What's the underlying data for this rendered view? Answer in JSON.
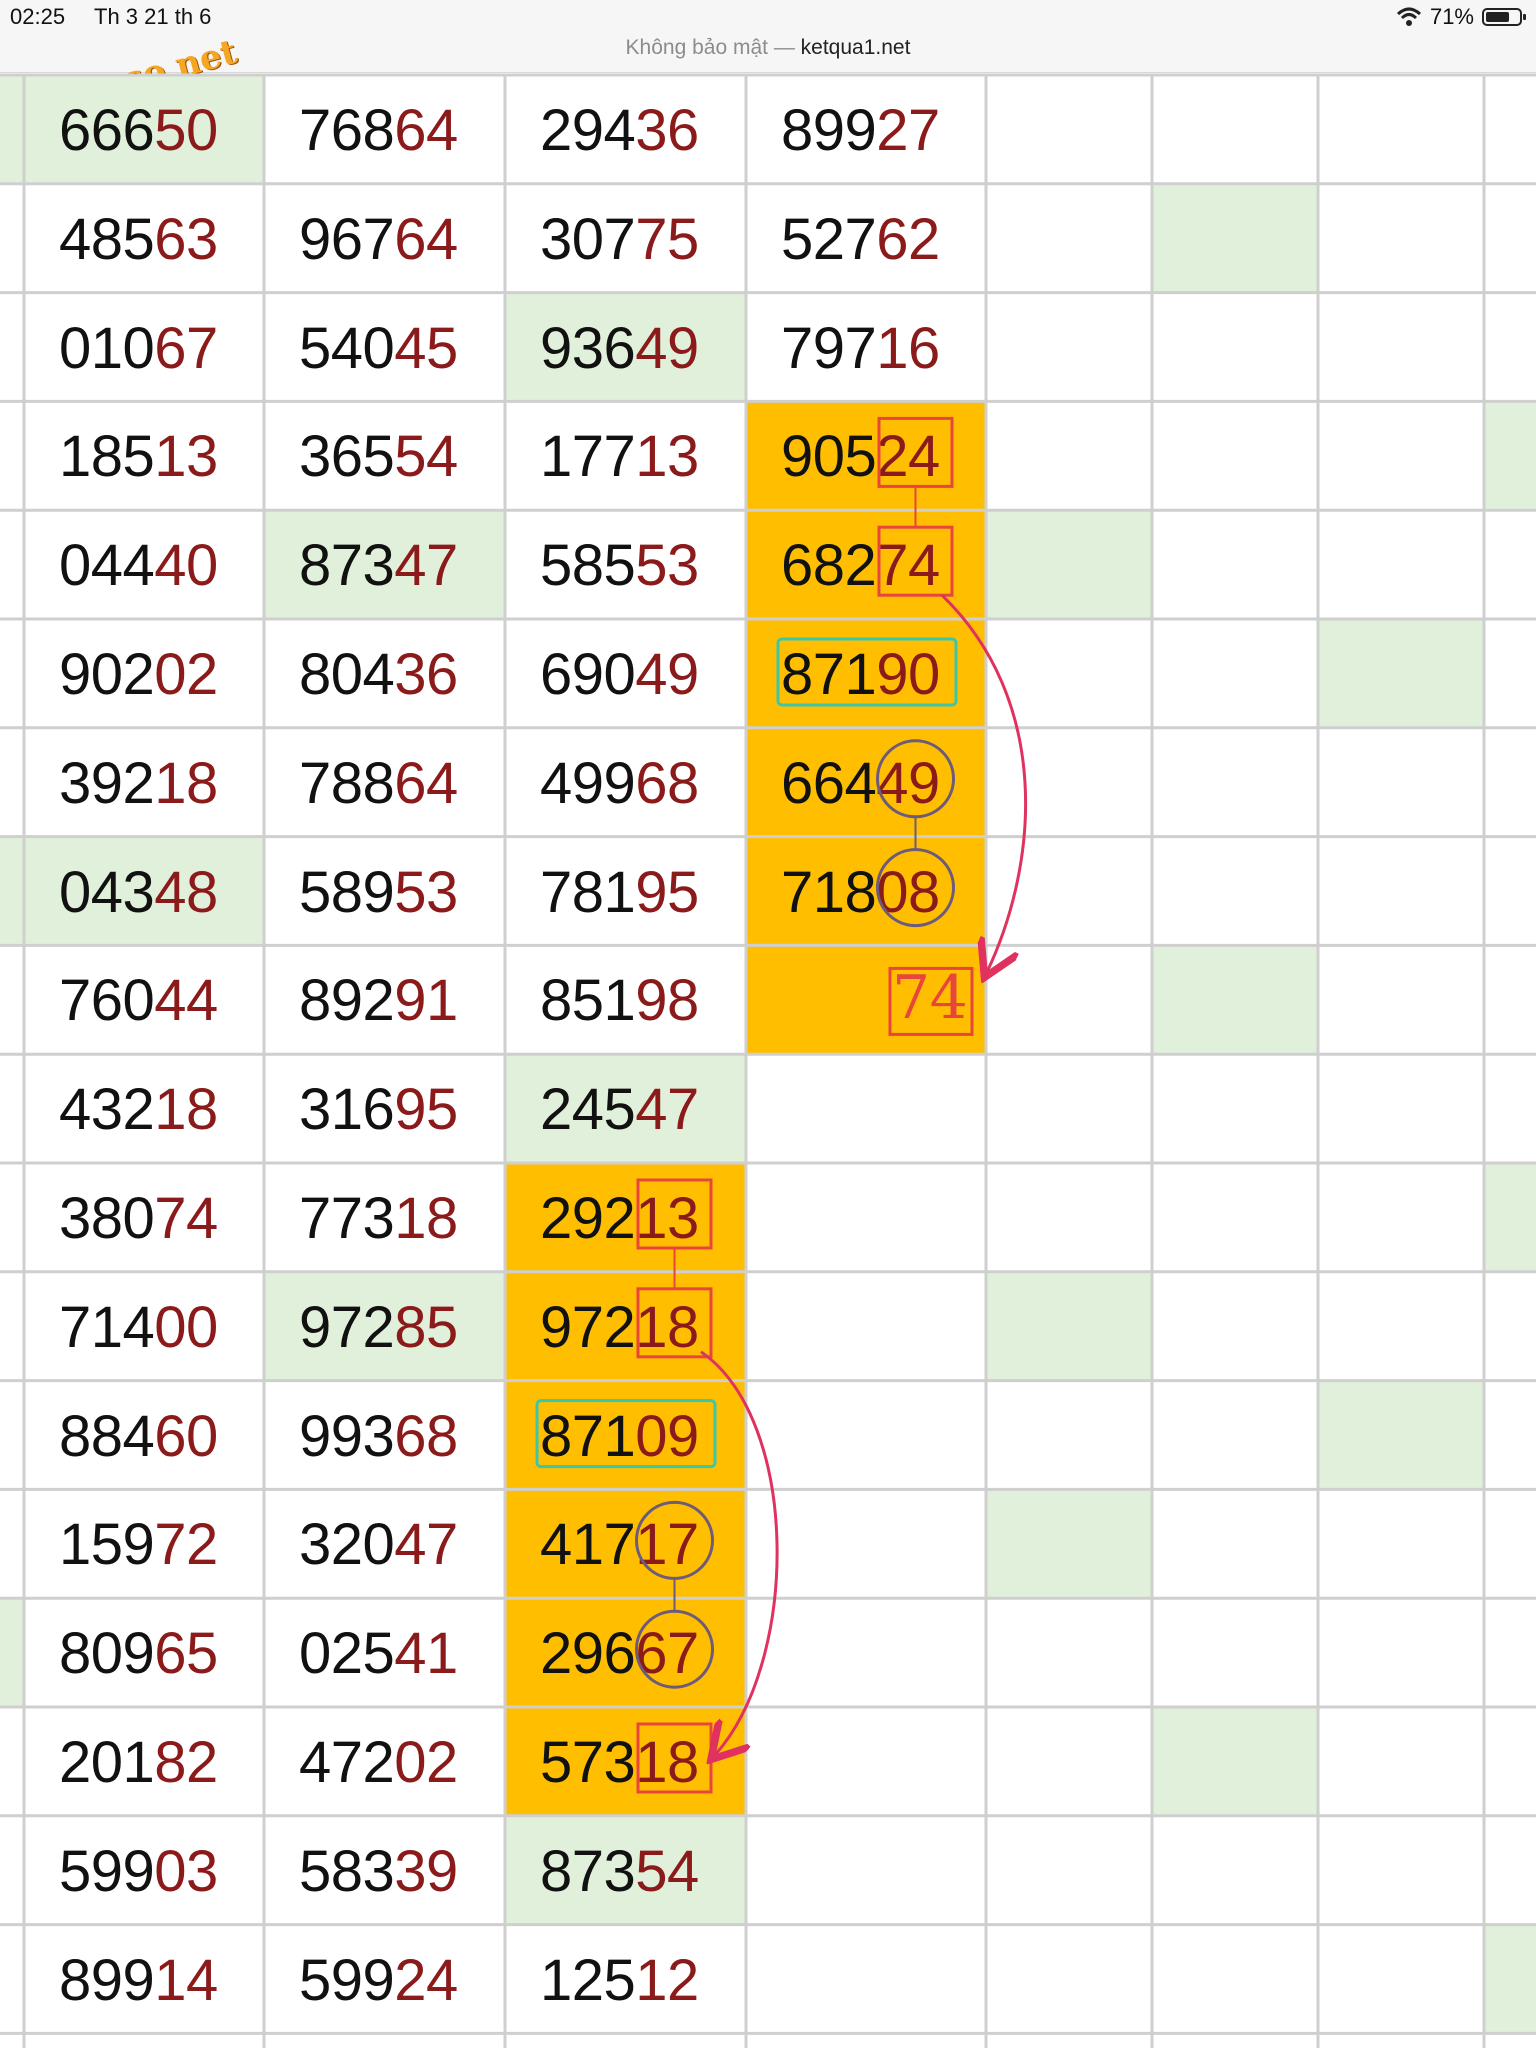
{
  "status_bar": {
    "time": "02:25",
    "date": "Th 3 21 th 6",
    "wifi": "wifi-icon",
    "battery_percent": "71%",
    "battery_level": 0.71
  },
  "browser": {
    "security_label": "Không bảo mật —",
    "domain": "ketqua1.net"
  },
  "watermark": "webxoso.net",
  "colors": {
    "grid_line": "#cfcfcf",
    "light_green": "#e1f0da",
    "orange": "#ffbf00",
    "digit_dark": "#111111",
    "digit_red": "#8b1a1a",
    "annotation_red": "#e8453c",
    "annotation_teal": "#3cc7a8",
    "annotation_purple": "#6e5a7a",
    "arrow_pink": "#e0325f"
  },
  "table": {
    "columns": [
      [
        "66650",
        "48563",
        "01067",
        "18513",
        "04440",
        "90202",
        "39218",
        "04348",
        "76044",
        "43218",
        "38074",
        "71400",
        "88460",
        "15972",
        "80965",
        "20182",
        "59903",
        "89914"
      ],
      [
        "76864",
        "96764",
        "54045",
        "36554",
        "87347",
        "80436",
        "78864",
        "58953",
        "89291",
        "31695",
        "77318",
        "97285",
        "99368",
        "32047",
        "02541",
        "47202",
        "58339",
        "59924"
      ],
      [
        "29436",
        "30775",
        "93649",
        "17713",
        "58553",
        "69049",
        "49968",
        "78195",
        "85198",
        "24547",
        "29213",
        "97218",
        "87109",
        "41717",
        "29667",
        "57318",
        "87354",
        "12512"
      ],
      [
        "89927",
        "52762",
        "79716",
        "90524",
        "68274",
        "87190",
        "66449",
        "71808",
        "",
        "",
        "",
        "",
        "",
        "",
        "",
        "",
        "",
        ""
      ]
    ],
    "predicted_value": "74",
    "highlight_green": [
      [
        0,
        0
      ],
      [
        0,
        7
      ],
      [
        1,
        4
      ],
      [
        1,
        11
      ],
      [
        2,
        2
      ],
      [
        2,
        9
      ],
      [
        2,
        16
      ]
    ],
    "highlight_orange": [
      [
        3,
        3
      ],
      [
        3,
        4
      ],
      [
        3,
        5
      ],
      [
        3,
        6
      ],
      [
        3,
        7
      ],
      [
        3,
        8
      ],
      [
        2,
        10
      ],
      [
        2,
        11
      ],
      [
        2,
        12
      ],
      [
        2,
        13
      ],
      [
        2,
        14
      ],
      [
        2,
        15
      ]
    ],
    "empty_green": [
      [
        -1,
        0
      ],
      [
        -1,
        7
      ],
      [
        -1,
        14
      ],
      [
        5,
        1
      ],
      [
        4,
        4
      ],
      [
        6,
        5
      ],
      [
        5,
        8
      ],
      [
        7,
        3
      ],
      [
        7,
        10
      ],
      [
        4,
        11
      ],
      [
        6,
        12
      ],
      [
        4,
        13
      ],
      [
        5,
        15
      ],
      [
        7,
        17
      ]
    ]
  }
}
